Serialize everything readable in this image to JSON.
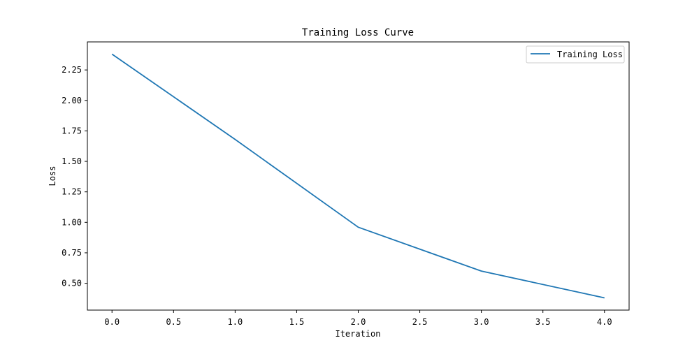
{
  "chart_data": {
    "type": "line",
    "title": "Training Loss Curve",
    "xlabel": "Iteration",
    "ylabel": "Loss",
    "x": [
      0,
      1,
      2,
      3,
      4
    ],
    "series": [
      {
        "name": "Training Loss",
        "color": "#1f77b4",
        "values": [
          2.38,
          1.68,
          0.96,
          0.6,
          0.38
        ]
      }
    ],
    "xlim": [
      -0.2,
      4.2
    ],
    "ylim": [
      0.28,
      2.48
    ],
    "xticks": [
      0.0,
      0.5,
      1.0,
      1.5,
      2.0,
      2.5,
      3.0,
      3.5,
      4.0
    ],
    "xtick_labels": [
      "0.0",
      "0.5",
      "1.0",
      "1.5",
      "2.0",
      "2.5",
      "3.0",
      "3.5",
      "4.0"
    ],
    "yticks": [
      0.5,
      0.75,
      1.0,
      1.25,
      1.5,
      1.75,
      2.0,
      2.25
    ],
    "ytick_labels": [
      "0.50",
      "0.75",
      "1.00",
      "1.25",
      "1.50",
      "1.75",
      "2.00",
      "2.25"
    ],
    "grid": false,
    "legend_position": "top-right"
  }
}
